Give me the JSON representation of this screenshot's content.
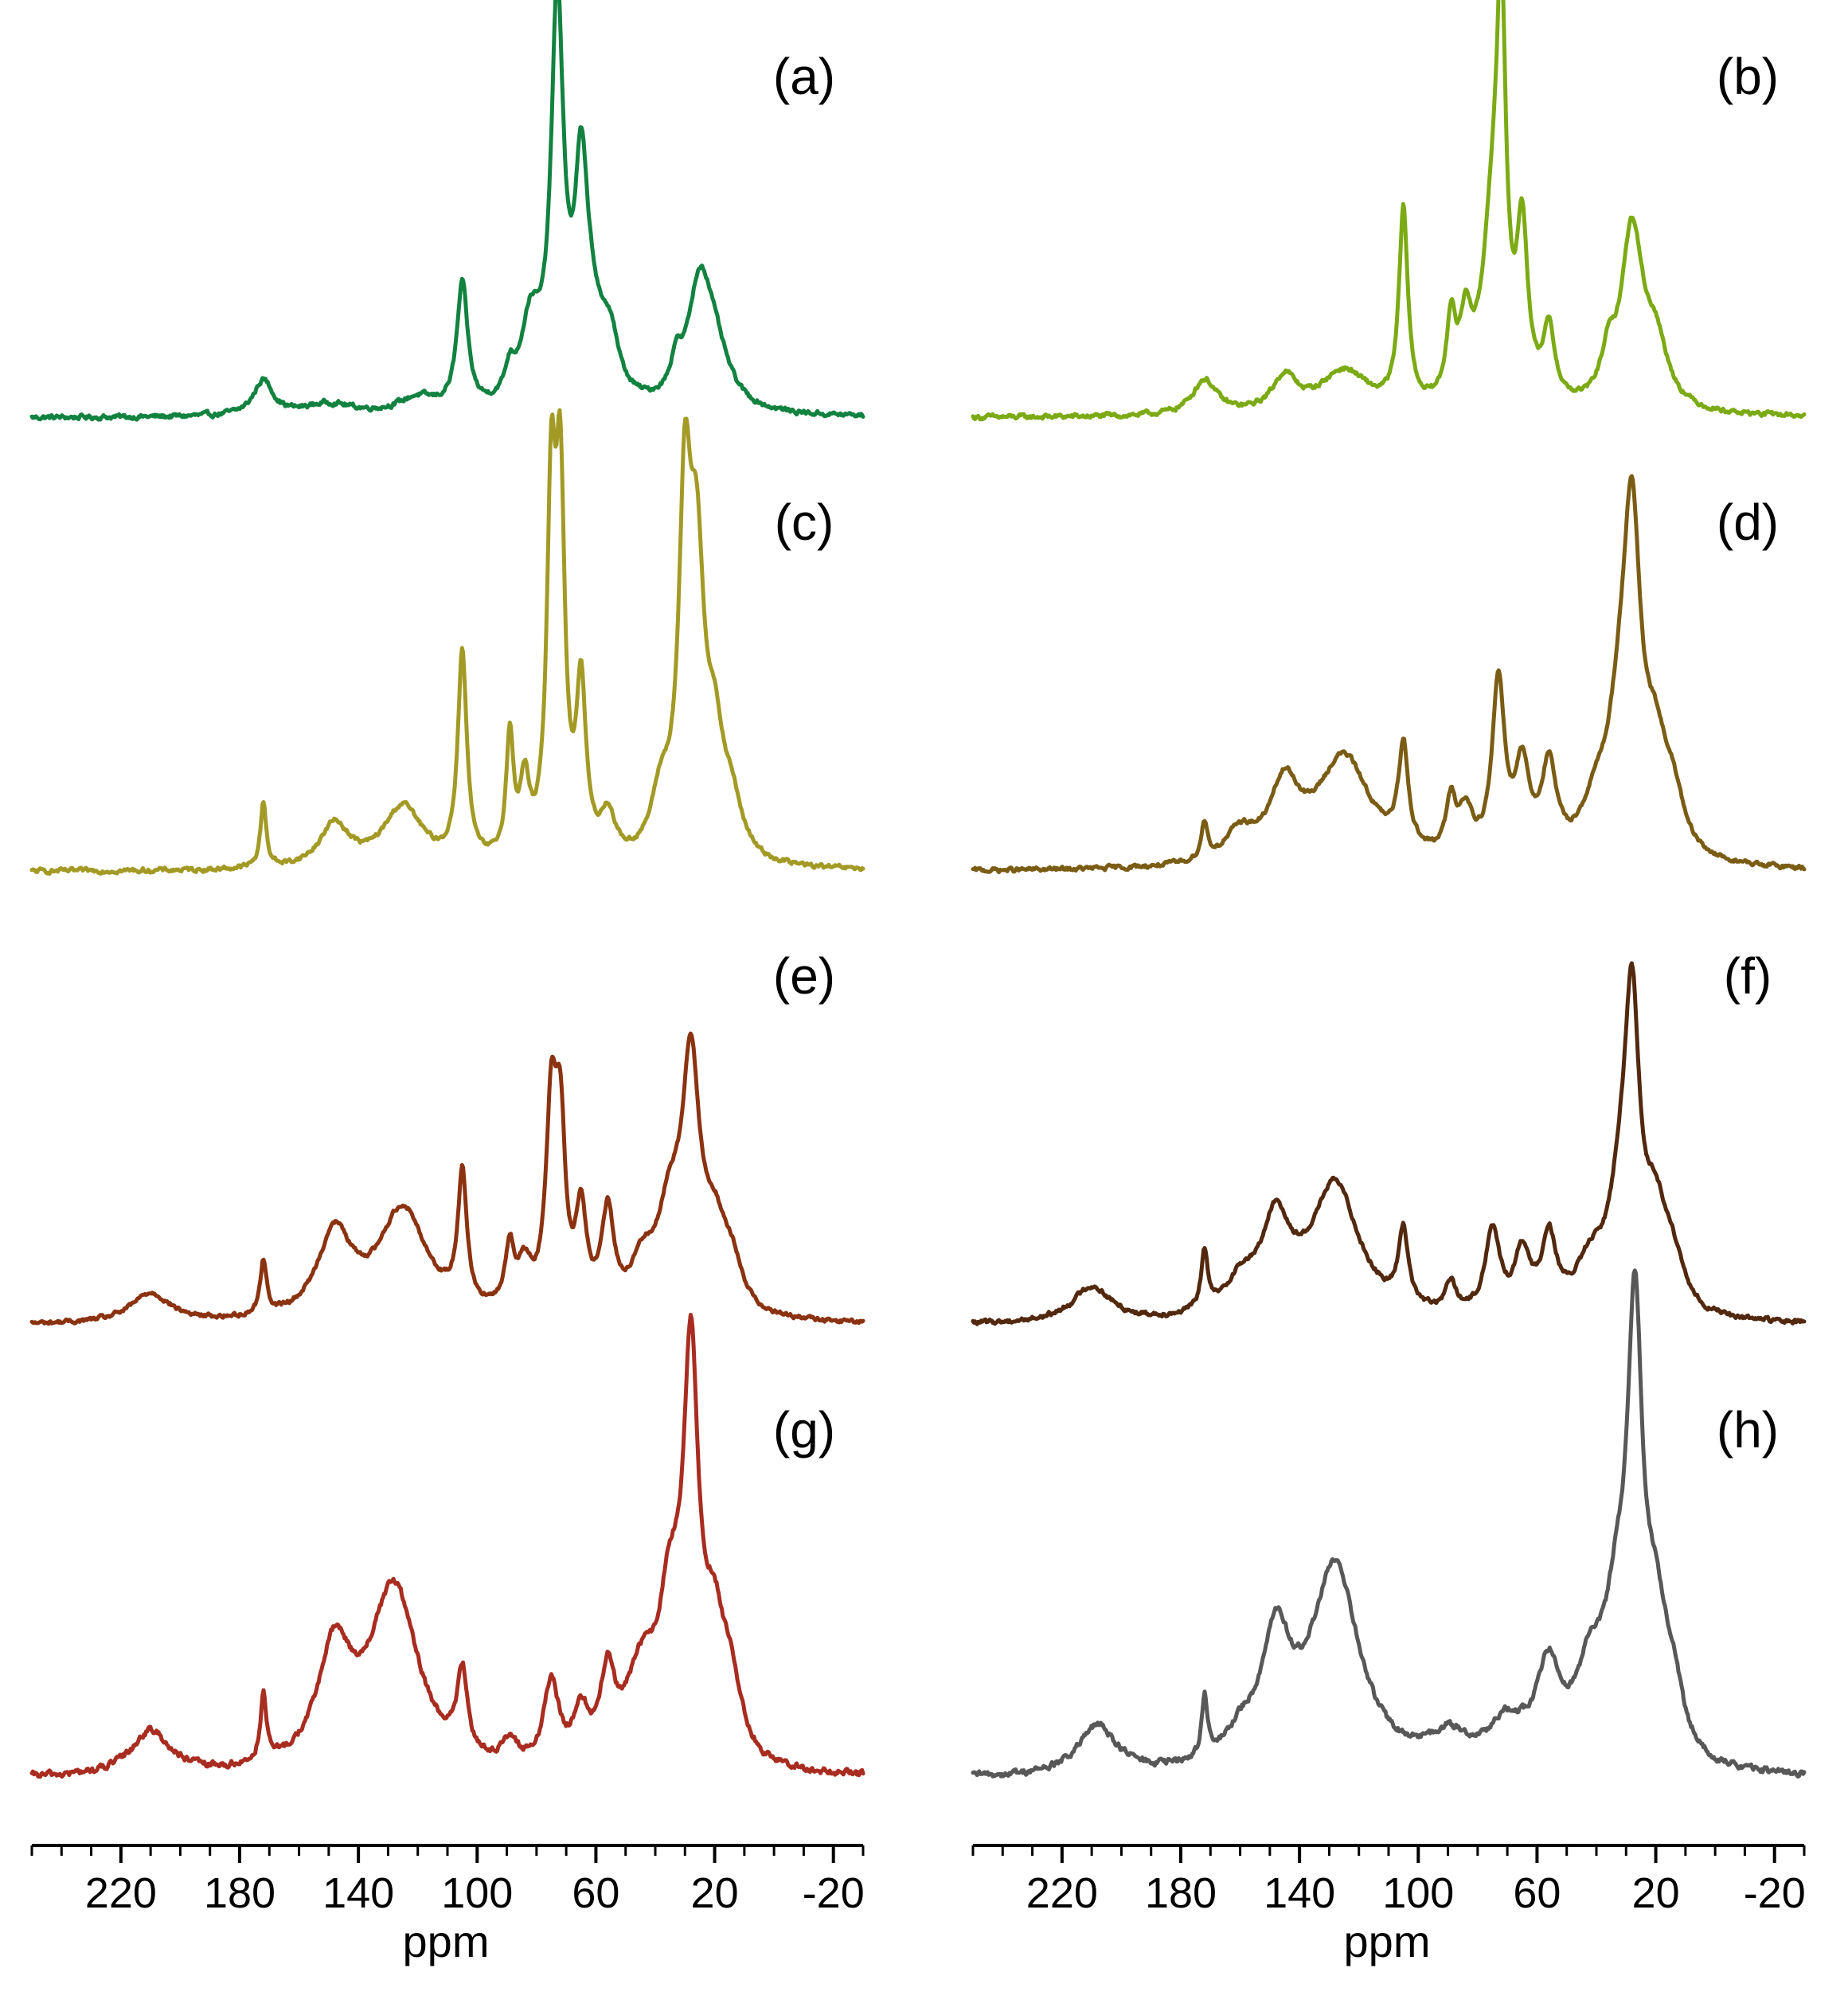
{
  "chart_data": {
    "type": "line",
    "description_units": "relative intensity",
    "x_axis": {
      "xlabel": "ppm",
      "xlim": [
        250,
        -30
      ],
      "reversed": true,
      "tick_values": [
        220,
        180,
        140,
        100,
        60,
        20,
        -20
      ],
      "tick_labels": [
        "220",
        "180",
        "140",
        "100",
        "60",
        "20",
        "-20"
      ],
      "minor_step": 10
    },
    "panels": [
      {
        "label": "(a)",
        "column": "left",
        "row": 0,
        "color": "#128240",
        "baseline": 0.0,
        "noise": 0.012,
        "peaks": [
          [
            172,
            0.09,
            4
          ],
          [
            105,
            0.32,
            2.2
          ],
          [
            89,
            0.07,
            2
          ],
          [
            82,
            0.2,
            4
          ],
          [
            73,
            1.0,
            2.5
          ],
          [
            65,
            0.45,
            2.5
          ],
          [
            62,
            0.22,
            6
          ],
          [
            55,
            0.12,
            3
          ],
          [
            33,
            0.08,
            2
          ],
          [
            25,
            0.3,
            5
          ],
          [
            20,
            0.12,
            6
          ],
          [
            150,
            0.03,
            10
          ],
          [
            120,
            0.04,
            8
          ]
        ]
      },
      {
        "label": "(b)",
        "column": "right",
        "row": 0,
        "color": "#7caa14",
        "baseline": 0.0,
        "noise": 0.012,
        "peaks": [
          [
            172,
            0.09,
            5
          ],
          [
            145,
            0.09,
            5
          ],
          [
            125,
            0.11,
            10
          ],
          [
            105,
            0.5,
            1.8
          ],
          [
            89,
            0.2,
            1.8
          ],
          [
            84,
            0.19,
            2.5
          ],
          [
            75,
            0.45,
            4
          ],
          [
            72,
            0.85,
            1.8
          ],
          [
            65,
            0.42,
            2.2
          ],
          [
            56,
            0.18,
            2.5
          ],
          [
            36,
            0.1,
            3
          ],
          [
            28,
            0.45,
            4.5
          ],
          [
            20,
            0.15,
            5
          ]
        ]
      },
      {
        "label": "(c)",
        "column": "left",
        "row": 1,
        "color": "#a39a26",
        "baseline": 0.0,
        "noise": 0.012,
        "peaks": [
          [
            172,
            0.18,
            1.2
          ],
          [
            148,
            0.12,
            6
          ],
          [
            125,
            0.17,
            8
          ],
          [
            105,
            0.58,
            1.8
          ],
          [
            89,
            0.33,
            1.5
          ],
          [
            84,
            0.2,
            2
          ],
          [
            75,
            0.95,
            1.8
          ],
          [
            72,
            0.95,
            1.8
          ],
          [
            65,
            0.46,
            2
          ],
          [
            56,
            0.12,
            3
          ],
          [
            38,
            0.16,
            4
          ],
          [
            30,
            0.9,
            2.5
          ],
          [
            26,
            0.7,
            3
          ],
          [
            20,
            0.28,
            4
          ],
          [
            14,
            0.12,
            4
          ]
        ]
      },
      {
        "label": "(d)",
        "column": "right",
        "row": 1,
        "color": "#7a5c14",
        "baseline": 0.0,
        "noise": 0.012,
        "peaks": [
          [
            172,
            0.1,
            1.3
          ],
          [
            160,
            0.08,
            6
          ],
          [
            145,
            0.2,
            6
          ],
          [
            125,
            0.3,
            11
          ],
          [
            105,
            0.28,
            2
          ],
          [
            89,
            0.14,
            2
          ],
          [
            84,
            0.12,
            3
          ],
          [
            73,
            0.48,
            2.5
          ],
          [
            65,
            0.24,
            3
          ],
          [
            56,
            0.24,
            3
          ],
          [
            40,
            0.12,
            6
          ],
          [
            32,
            0.28,
            5
          ],
          [
            28,
            0.8,
            3.5
          ],
          [
            20,
            0.25,
            5
          ],
          [
            14,
            0.12,
            4
          ]
        ]
      },
      {
        "label": "(e)",
        "column": "left",
        "row": 2,
        "color": "#8b3210",
        "baseline": 0.0,
        "noise": 0.014,
        "peaks": [
          [
            210,
            0.1,
            8
          ],
          [
            172,
            0.18,
            1.3
          ],
          [
            148,
            0.28,
            7
          ],
          [
            125,
            0.37,
            10
          ],
          [
            105,
            0.44,
            1.8
          ],
          [
            89,
            0.2,
            1.8
          ],
          [
            84,
            0.14,
            3
          ],
          [
            75,
            0.65,
            2.2
          ],
          [
            72,
            0.55,
            2
          ],
          [
            65,
            0.32,
            2.2
          ],
          [
            56,
            0.32,
            2.5
          ],
          [
            44,
            0.15,
            5
          ],
          [
            35,
            0.3,
            5
          ],
          [
            28,
            0.78,
            3.5
          ],
          [
            20,
            0.25,
            5
          ],
          [
            14,
            0.12,
            4
          ]
        ]
      },
      {
        "label": "(f)",
        "column": "right",
        "row": 2,
        "color": "#52280e",
        "baseline": 0.0,
        "noise": 0.016,
        "peaks": [
          [
            210,
            0.12,
            8
          ],
          [
            172,
            0.2,
            1.3
          ],
          [
            160,
            0.1,
            6
          ],
          [
            148,
            0.3,
            6
          ],
          [
            128,
            0.45,
            10
          ],
          [
            105,
            0.25,
            2
          ],
          [
            89,
            0.1,
            2
          ],
          [
            75,
            0.28,
            3
          ],
          [
            65,
            0.2,
            3
          ],
          [
            56,
            0.25,
            3
          ],
          [
            42,
            0.15,
            6
          ],
          [
            32,
            0.3,
            5
          ],
          [
            28,
            0.9,
            3
          ],
          [
            20,
            0.3,
            5
          ],
          [
            14,
            0.12,
            4
          ]
        ]
      },
      {
        "label": "(g)",
        "column": "left",
        "row": 3,
        "color": "#a82c20",
        "baseline": 0.0,
        "noise": 0.016,
        "peaks": [
          [
            210,
            0.11,
            8
          ],
          [
            172,
            0.16,
            1.3
          ],
          [
            148,
            0.28,
            7
          ],
          [
            128,
            0.45,
            10
          ],
          [
            105,
            0.2,
            2
          ],
          [
            89,
            0.05,
            3
          ],
          [
            75,
            0.2,
            3
          ],
          [
            65,
            0.12,
            3
          ],
          [
            56,
            0.2,
            3
          ],
          [
            45,
            0.2,
            6
          ],
          [
            35,
            0.35,
            5
          ],
          [
            28,
            0.9,
            3
          ],
          [
            20,
            0.3,
            5
          ],
          [
            14,
            0.12,
            4
          ]
        ]
      },
      {
        "label": "(h)",
        "column": "right",
        "row": 3,
        "color": "#585858",
        "baseline": 0.0,
        "noise": 0.016,
        "peaks": [
          [
            208,
            0.12,
            8
          ],
          [
            172,
            0.15,
            1.2
          ],
          [
            160,
            0.06,
            6
          ],
          [
            148,
            0.3,
            6
          ],
          [
            128,
            0.5,
            10
          ],
          [
            90,
            0.07,
            8
          ],
          [
            70,
            0.1,
            8
          ],
          [
            56,
            0.22,
            5
          ],
          [
            42,
            0.2,
            6
          ],
          [
            33,
            0.3,
            5
          ],
          [
            27,
            0.98,
            3
          ],
          [
            20,
            0.3,
            5
          ],
          [
            14,
            0.12,
            4
          ]
        ]
      }
    ]
  }
}
